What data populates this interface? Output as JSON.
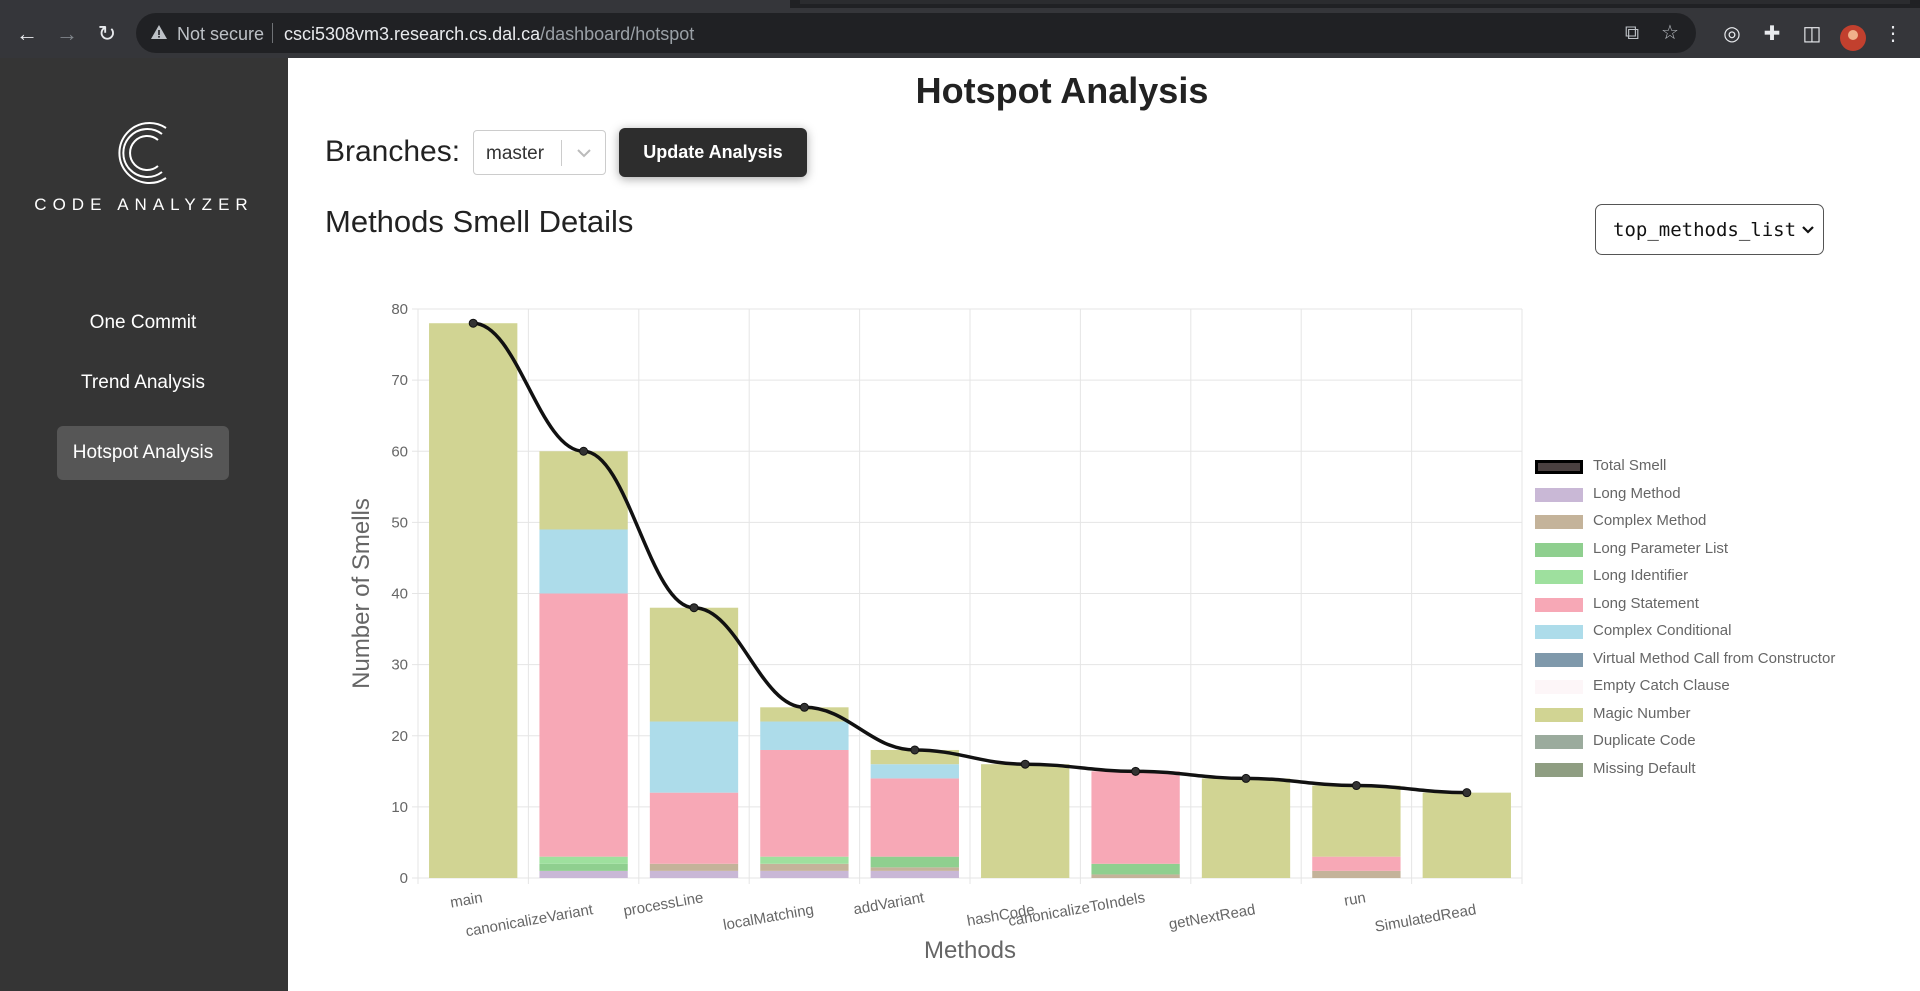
{
  "browser": {
    "security_label": "Not secure",
    "url_host": "csci5308vm3.research.cs.dal.ca",
    "url_path": "/dashboard/hotspot"
  },
  "sidebar": {
    "brand": "CODE ANALYZER",
    "items": [
      {
        "label": "One Commit",
        "active": false
      },
      {
        "label": "Trend Analysis",
        "active": false
      },
      {
        "label": "Hotspot Analysis",
        "active": true
      }
    ]
  },
  "main": {
    "title": "Hotspot Analysis",
    "branches_label": "Branches:",
    "branch_value": "master",
    "update_button": "Update Analysis",
    "section_title": "Methods Smell Details",
    "list_select_value": "top_methods_list"
  },
  "chart_data": {
    "type": "bar",
    "stacked": true,
    "xlabel": "Methods",
    "ylabel": "Number of Smells",
    "ylim": [
      0,
      80
    ],
    "yticks": [
      0,
      10,
      20,
      30,
      40,
      50,
      60,
      70,
      80
    ],
    "grid": true,
    "legend_position": "right",
    "categories": [
      "main",
      "canonicalizeVariant",
      "processLine",
      "localMatching",
      "addVariant",
      "hashCode",
      "canonicalizeToIndels",
      "getNextRead",
      "run",
      "SimulatedRead"
    ],
    "series": [
      {
        "name": "Long Method",
        "color": "#c9b8d6",
        "values": [
          0,
          1,
          1,
          1,
          1,
          0,
          0,
          0,
          0,
          0
        ]
      },
      {
        "name": "Complex Method",
        "color": "#c4b39a",
        "values": [
          0,
          0,
          1,
          1,
          0.5,
          0,
          0.5,
          0,
          1,
          0
        ]
      },
      {
        "name": "Long Parameter List",
        "color": "#8fcf8f",
        "values": [
          0,
          1,
          0,
          0,
          1.5,
          0,
          1.5,
          0,
          0,
          0
        ]
      },
      {
        "name": "Long Identifier",
        "color": "#9ee09e",
        "values": [
          0,
          1,
          0,
          1,
          0,
          0,
          0,
          0,
          0,
          0
        ]
      },
      {
        "name": "Long Statement",
        "color": "#f7a8b6",
        "values": [
          0,
          37,
          10,
          15,
          11,
          0,
          13,
          0,
          2,
          0
        ]
      },
      {
        "name": "Complex Conditional",
        "color": "#addcea",
        "values": [
          0,
          9,
          10,
          4,
          2,
          0,
          0,
          0,
          0,
          0
        ]
      },
      {
        "name": "Virtual Method Call from Constructor",
        "color": "#7f99ab",
        "values": [
          0,
          0,
          0,
          0,
          0,
          0,
          0,
          0,
          0,
          0
        ]
      },
      {
        "name": "Empty Catch Clause",
        "color": "#fdf6f8",
        "values": [
          0,
          0,
          0,
          0,
          0,
          0,
          0,
          0,
          0,
          0
        ]
      },
      {
        "name": "Magic Number",
        "color": "#d1d493",
        "values": [
          78,
          11,
          16,
          2,
          2,
          16,
          0,
          14,
          10,
          12
        ]
      },
      {
        "name": "Duplicate Code",
        "color": "#9bab9d",
        "values": [
          0,
          0,
          0,
          0,
          0,
          0,
          0,
          0,
          0,
          0
        ]
      },
      {
        "name": "Missing Default",
        "color": "#8f9e82",
        "values": [
          0,
          0,
          0,
          0,
          0,
          0,
          0,
          0,
          0,
          0
        ]
      }
    ],
    "line": {
      "name": "Total Smell",
      "color": "#111111",
      "values": [
        78,
        60,
        38,
        24,
        18,
        16,
        15,
        14,
        13,
        12
      ]
    }
  }
}
